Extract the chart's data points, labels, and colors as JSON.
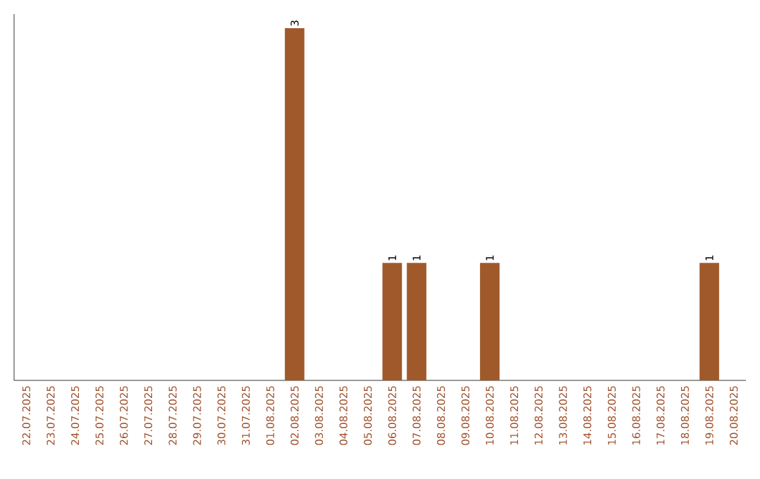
{
  "chart_data": {
    "type": "bar",
    "categories": [
      "22.07.2025",
      "23.07.2025",
      "24.07.2025",
      "25.07.2025",
      "26.07.2025",
      "27.07.2025",
      "28.07.2025",
      "29.07.2025",
      "30.07.2025",
      "31.07.2025",
      "01.08.2025",
      "02.08.2025",
      "03.08.2025",
      "04.08.2025",
      "05.08.2025",
      "06.08.2025",
      "07.08.2025",
      "08.08.2025",
      "09.08.2025",
      "10.08.2025",
      "11.08.2025",
      "12.08.2025",
      "13.08.2025",
      "14.08.2025",
      "15.08.2025",
      "16.08.2025",
      "17.08.2025",
      "18.08.2025",
      "19.08.2025",
      "20.08.2025"
    ],
    "values": [
      0,
      0,
      0,
      0,
      0,
      0,
      0,
      0,
      0,
      0,
      0,
      3,
      0,
      0,
      0,
      1,
      1,
      0,
      0,
      1,
      0,
      0,
      0,
      0,
      0,
      0,
      0,
      0,
      1,
      0
    ],
    "value_labels": [
      null,
      null,
      null,
      null,
      null,
      null,
      null,
      null,
      null,
      null,
      null,
      "3",
      null,
      null,
      null,
      "1",
      "1",
      null,
      null,
      "1",
      null,
      null,
      null,
      null,
      null,
      null,
      null,
      null,
      "1",
      null
    ],
    "color": "#a0592a"
  }
}
